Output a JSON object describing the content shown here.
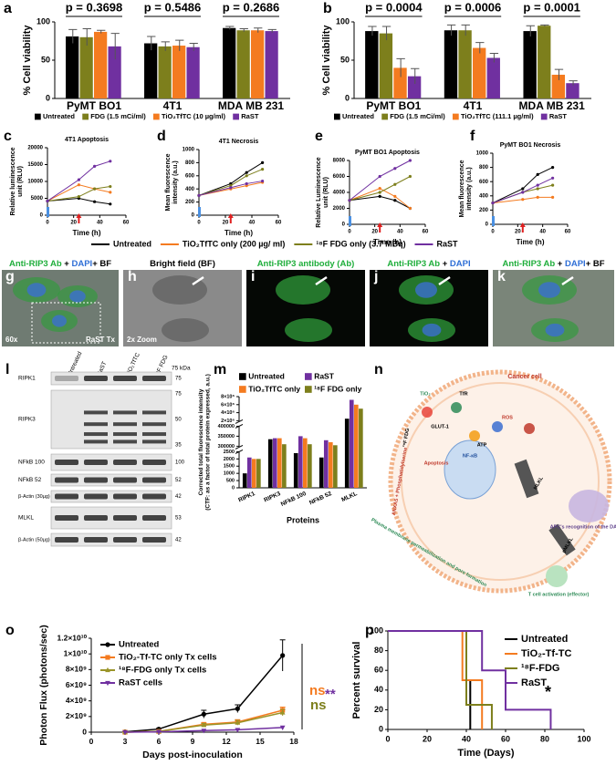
{
  "panel_labels": [
    "a",
    "b",
    "c",
    "d",
    "e",
    "f",
    "g",
    "h",
    "i",
    "j",
    "k",
    "l",
    "m",
    "n",
    "o",
    "p"
  ],
  "chart_data": [
    {
      "type": "bar",
      "ylabel": "% Cell viability",
      "categories": [
        "PyMT BO1",
        "4T1",
        "MDA MB 231"
      ],
      "annotations": [
        "p = 0.3698",
        "p = 0.5486",
        "p = 0.2686"
      ],
      "series": [
        {
          "name": "Untreated",
          "color": "#000000",
          "values": [
            81,
            72,
            92
          ],
          "errors": [
            9,
            9,
            2
          ]
        },
        {
          "name": "FDG (1.5 mCi/ml)",
          "color": "#7d7f1c",
          "values": [
            80,
            68,
            89
          ],
          "errors": [
            11,
            6,
            2
          ]
        },
        {
          "name": "TiO₂TfTC (10 µg/ml)",
          "color": "#f47b20",
          "values": [
            87,
            69,
            89
          ],
          "errors": [
            2,
            7,
            3
          ]
        },
        {
          "name": "RaST",
          "color": "#7030a0",
          "values": [
            68,
            67,
            88
          ],
          "errors": [
            17,
            5,
            2
          ]
        }
      ],
      "ylim": [
        0,
        100
      ],
      "yticks": [
        0,
        50,
        100
      ]
    },
    {
      "type": "bar",
      "ylabel": "% Cell viability",
      "categories": [
        "PyMT BO1",
        "4T1",
        "MDA MB 231"
      ],
      "annotations": [
        "p = 0.0004",
        "p = 0.0006",
        "p = 0.0001"
      ],
      "series": [
        {
          "name": "Untreated",
          "color": "#000000",
          "values": [
            88,
            89,
            88
          ],
          "errors": [
            6,
            7,
            7
          ]
        },
        {
          "name": "FDG (1.5 mCi/ml)",
          "color": "#7d7f1c",
          "values": [
            85,
            89,
            95
          ],
          "errors": [
            9,
            7,
            1
          ]
        },
        {
          "name": "TiO₂TfTC (111.1 µg/ml)",
          "color": "#f47b20",
          "values": [
            40,
            66,
            31
          ],
          "errors": [
            12,
            7,
            7
          ]
        },
        {
          "name": "RaST",
          "color": "#7030a0",
          "values": [
            29,
            53,
            20
          ],
          "errors": [
            10,
            6,
            3
          ]
        }
      ],
      "ylim": [
        0,
        100
      ],
      "yticks": [
        0,
        50,
        100
      ]
    },
    {
      "type": "line",
      "title": "4T1 Apoptosis",
      "xlabel": "Time (h)",
      "ylabel": [
        "Relative luminescence",
        "unit (RLU)"
      ],
      "x": [
        0,
        24,
        36,
        48
      ],
      "xlim": [
        0,
        60
      ],
      "xticks": [
        0,
        20,
        40,
        60
      ],
      "ylim": [
        0,
        20000
      ],
      "yticks": [
        0,
        5000,
        10000,
        15000,
        20000
      ],
      "event_x": [
        0,
        24
      ],
      "event_colors": [
        "#4a90e2",
        "#e02020"
      ],
      "series": [
        {
          "name": "Untreated",
          "color": "#000000",
          "values": [
            4200,
            5000,
            4000,
            3300
          ]
        },
        {
          "name": "TiO₂TfTC only (200 µg/ ml)",
          "color": "#f47b20",
          "values": [
            4200,
            9000,
            7800,
            6800
          ]
        },
        {
          "name": "¹⁸F FDG only (3.7 MBq)",
          "color": "#7d7f1c",
          "values": [
            4200,
            5500,
            7800,
            8500
          ]
        },
        {
          "name": "RaST",
          "color": "#7030a0",
          "values": [
            4200,
            10500,
            14500,
            16000
          ]
        }
      ]
    },
    {
      "type": "line",
      "title": "4T1 Necrosis",
      "xlabel": "Time (h)",
      "ylabel": [
        "Mean fluorescence",
        "intensity (a.u.)"
      ],
      "x": [
        0,
        24,
        36,
        48
      ],
      "xlim": [
        0,
        60
      ],
      "xticks": [
        0,
        20,
        40,
        60
      ],
      "ylim": [
        0,
        1000
      ],
      "yticks": [
        0,
        200,
        400,
        600,
        800,
        1000
      ],
      "event_x": [
        0,
        24
      ],
      "event_colors": [
        "#4a90e2",
        "#e02020"
      ],
      "series": [
        {
          "color": "#000000",
          "values": [
            300,
            480,
            650,
            800
          ]
        },
        {
          "color": "#f47b20",
          "values": [
            300,
            400,
            450,
            500
          ]
        },
        {
          "color": "#7d7f1c",
          "values": [
            300,
            450,
            600,
            700
          ]
        },
        {
          "color": "#7030a0",
          "values": [
            300,
            420,
            480,
            520
          ]
        }
      ]
    },
    {
      "type": "line",
      "title": "PyMT BO1 Apoptosis",
      "xlabel": "Time (h)",
      "ylabel": [
        "Relative Luminescence",
        "unit (RLU)"
      ],
      "x": [
        0,
        24,
        36,
        48
      ],
      "xlim": [
        0,
        60
      ],
      "xticks": [
        0,
        20,
        40,
        60
      ],
      "ylim": [
        0,
        8000
      ],
      "yticks": [
        0,
        2000,
        4000,
        6000,
        8000
      ],
      "event_x": [
        0,
        24
      ],
      "event_colors": [
        "#4a90e2",
        "#e02020"
      ],
      "series": [
        {
          "color": "#000000",
          "values": [
            3000,
            3500,
            3000,
            2000
          ]
        },
        {
          "color": "#f47b20",
          "values": [
            3000,
            4500,
            3500,
            2000
          ]
        },
        {
          "color": "#7d7f1c",
          "values": [
            3000,
            4000,
            5000,
            6000
          ]
        },
        {
          "color": "#7030a0",
          "values": [
            3000,
            6000,
            7000,
            8000
          ]
        }
      ]
    },
    {
      "type": "line",
      "title": "PyMT BO1 Necrosis",
      "xlabel": "Time (h)",
      "ylabel": [
        "Mean fluorescence",
        "intensity (a.u.)"
      ],
      "x": [
        0,
        24,
        36,
        48
      ],
      "xlim": [
        0,
        60
      ],
      "xticks": [
        0,
        20,
        40,
        60
      ],
      "ylim": [
        0,
        1000
      ],
      "yticks": [
        0,
        200,
        400,
        600,
        800,
        1000
      ],
      "event_x": [
        0,
        24
      ],
      "event_colors": [
        "#4a90e2",
        "#e02020"
      ],
      "series": [
        {
          "color": "#000000",
          "values": [
            300,
            500,
            700,
            800
          ]
        },
        {
          "color": "#f47b20",
          "values": [
            300,
            350,
            380,
            380
          ]
        },
        {
          "color": "#7d7f1c",
          "values": [
            300,
            450,
            500,
            550
          ]
        },
        {
          "color": "#7030a0",
          "values": [
            300,
            450,
            550,
            650
          ]
        }
      ]
    },
    {
      "type": "bar",
      "ylabel": [
        "Corrected total fluorescence intensity",
        "(CTF: as a factor of total protein expressed, a.u.)"
      ],
      "xlabel": "Proteins",
      "categories": [
        "RIPK1",
        "RIPK3",
        "NFkB 100",
        "NFkB 52",
        "MLKL"
      ],
      "ylim_segments": [
        [
          0,
          2500
        ],
        [
          300000,
          400000
        ],
        [
          2000000,
          8000000
        ]
      ],
      "yticks": [
        0,
        500,
        1000,
        1500,
        2000,
        2500,
        300000,
        350000,
        400000,
        {
          "value": 2000000,
          "label": "2×10⁶"
        },
        {
          "value": 4000000,
          "label": "4×10⁶"
        },
        {
          "value": 6000000,
          "label": "6×10⁶"
        },
        {
          "value": 8000000,
          "label": "8×10⁶"
        }
      ],
      "series": [
        {
          "name": "Untreated",
          "color": "#000000",
          "values": [
            1000,
            335000,
            2400,
            2100,
            2500000
          ]
        },
        {
          "name": "RaST",
          "color": "#7030a0",
          "values": [
            2100,
            340000,
            350000,
            330000,
            7200000
          ]
        },
        {
          "name": "TiO₂TfTC only",
          "color": "#f47b20",
          "values": [
            2000,
            340000,
            340000,
            320000,
            6000000
          ]
        },
        {
          "name": "¹⁸F FDG only",
          "color": "#7d7f1c",
          "values": [
            2000,
            310000,
            310000,
            305000,
            5000000
          ]
        }
      ]
    },
    {
      "type": "line",
      "xlabel": "Days post-inoculation",
      "ylabel": "Photon Flux (photons/sec)",
      "x": [
        3,
        6,
        10,
        13,
        17
      ],
      "xlim": [
        0,
        18
      ],
      "xticks": [
        0,
        3,
        6,
        9,
        12,
        15,
        18
      ],
      "ylim": [
        0,
        12000000000
      ],
      "yticks": [
        0,
        {
          "value": 2000000000,
          "label": "2×10⁹"
        },
        {
          "value": 4000000000,
          "label": "4×10⁹"
        },
        {
          "value": 6000000000,
          "label": "6×10⁹"
        },
        {
          "value": 8000000000,
          "label": "8×10⁹"
        },
        {
          "value": 10000000000,
          "label": "1×10¹⁰"
        },
        {
          "value": 12000000000,
          "label": "1.2×10¹⁰"
        }
      ],
      "annotations": [
        {
          "text": "ns",
          "color": "#f47b20"
        },
        {
          "text": "ns",
          "color": "#7d7f1c"
        },
        {
          "text": "**",
          "color": "#7030a0"
        }
      ],
      "series": [
        {
          "name": "Untreated",
          "color": "#000000",
          "marker": "circle",
          "values": [
            50000000,
            400000000,
            2300000000,
            3000000000,
            9800000000
          ],
          "errors": [
            0,
            100000000,
            500000000,
            500000000,
            2000000000
          ]
        },
        {
          "name": "TiO₂-Tf-TC only Tx cells",
          "color": "#f47b20",
          "marker": "square",
          "values": [
            0,
            100000000,
            1000000000,
            1300000000,
            2800000000
          ],
          "errors": [
            0,
            0,
            200000000,
            300000000,
            400000000
          ]
        },
        {
          "name": "¹⁸F-FDG only Tx cells",
          "color": "#9a9428",
          "marker": "triangle",
          "values": [
            0,
            100000000,
            900000000,
            1200000000,
            2500000000
          ],
          "errors": [
            0,
            0,
            200000000,
            300000000,
            400000000
          ]
        },
        {
          "name": "RaST cells",
          "color": "#7030a0",
          "marker": "triangle-down",
          "values": [
            0,
            50000000,
            200000000,
            300000000,
            600000000
          ]
        }
      ]
    },
    {
      "type": "step",
      "xlabel": "Time (Days)",
      "ylabel": "Percent survival",
      "xlim": [
        0,
        100
      ],
      "xticks": [
        0,
        20,
        40,
        60,
        80,
        100
      ],
      "ylim": [
        0,
        100
      ],
      "yticks": [
        0,
        20,
        40,
        60,
        80,
        100
      ],
      "annotations": [
        {
          "text": "*",
          "color": "#000000"
        }
      ],
      "series": [
        {
          "name": "Untreated",
          "color": "#000000",
          "x": [
            0,
            40,
            42
          ],
          "values": [
            100,
            50,
            0
          ]
        },
        {
          "name": "TiO₂-Tf-TC",
          "color": "#f47b20",
          "x": [
            0,
            38,
            48
          ],
          "values": [
            100,
            50,
            0
          ]
        },
        {
          "name": "¹⁸F-FDG",
          "color": "#7d7f1c",
          "x": [
            0,
            40,
            53
          ],
          "values": [
            100,
            25,
            0
          ]
        },
        {
          "name": "RaST",
          "color": "#7030a0",
          "x": [
            0,
            48,
            60,
            83
          ],
          "values": [
            100,
            60,
            20,
            0
          ]
        }
      ]
    }
  ],
  "micrographs": [
    {
      "title": [
        {
          "text": "Anti-RIP3 Ab",
          "color": "#1fae3b"
        },
        {
          "text": " + ",
          "color": "#000000"
        },
        {
          "text": "DAPI",
          "color": "#2f6fd6"
        },
        {
          "text": "+ BF",
          "color": "#000000"
        }
      ],
      "notes": [
        "60x",
        "RaST Tx"
      ]
    },
    {
      "title": [
        {
          "text": "Bright field (BF)",
          "color": "#000000"
        }
      ],
      "notes": [
        "2x Zoom"
      ]
    },
    {
      "title": [
        {
          "text": "Anti-RIP3 antibody (Ab)",
          "color": "#1fae3b"
        }
      ]
    },
    {
      "title": [
        {
          "text": "Anti-RIP3 Ab",
          "color": "#1fae3b"
        },
        {
          "text": " + ",
          "color": "#000000"
        },
        {
          "text": "DAPI",
          "color": "#2f6fd6"
        }
      ]
    },
    {
      "title": [
        {
          "text": "Anti-RIP3 Ab",
          "color": "#1fae3b"
        },
        {
          "text": " + ",
          "color": "#000000"
        },
        {
          "text": "DAPI",
          "color": "#2f6fd6"
        },
        {
          "text": "+ BF",
          "color": "#000000"
        }
      ]
    }
  ],
  "blot": {
    "lanes": [
      "Untreated",
      "RaST",
      "TiO₂TfTC",
      "¹⁸F FDG"
    ],
    "ladder_unit": "75 kDa",
    "rows": [
      {
        "label": "RIPK1",
        "markers": [
          "75"
        ]
      },
      {
        "label": "RIPK3",
        "markers": [
          "75",
          "50",
          "35"
        ]
      },
      {
        "label": "NFkB 100",
        "markers": [
          "100"
        ]
      },
      {
        "label": "NFkB 52",
        "markers": [
          "52"
        ]
      },
      {
        "label": "β-Actin (30µg)",
        "markers": [
          "42"
        ]
      },
      {
        "label": "MLKL",
        "markers": [
          "53"
        ]
      },
      {
        "label": "β-Actin (50µg)",
        "markers": [
          "42"
        ]
      }
    ]
  },
  "diagram": {
    "labels": [
      "Cancer cell",
      "TiO₂",
      "TfR",
      "¹⁸F FDG",
      "GLUT-1",
      "ROS",
      "ATP",
      "Apoptosis",
      "ANXA5 + Phosphatidylserine",
      "MLKL",
      "pMLKL",
      "NF-κB",
      "APC's recognition of the DAMPs",
      "Plasma membrane permeabilization and pore formation",
      "T cell activation (effector)"
    ]
  }
}
